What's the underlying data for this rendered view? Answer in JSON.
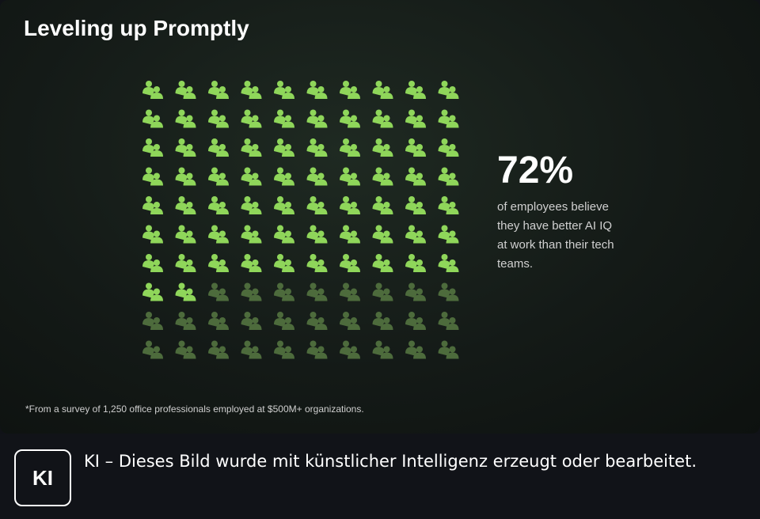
{
  "chart_data": {
    "type": "waffle",
    "title": "Leveling up Promptly",
    "values": [
      72
    ],
    "value_labels": [
      "72%"
    ],
    "description": "of employees believe they have better AI IQ at work than their tech teams.",
    "footnote": "*From a survey of 1,250 office professionals employed at $500M+ organizations.",
    "color": "#8fd65a",
    "rest_color": "#4d6b3c"
  },
  "badge": {
    "label": "KI",
    "text": "KI – Dieses Bild wurde mit künstlicher Intelligenz erzeugt oder bearbeitet."
  }
}
